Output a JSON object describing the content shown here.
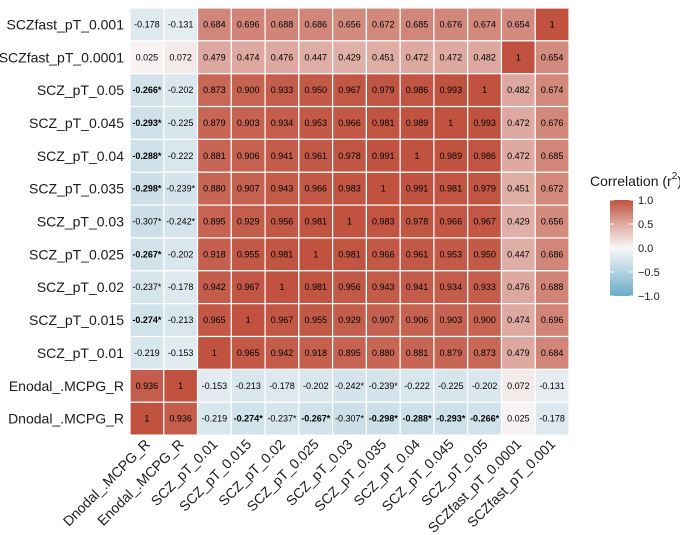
{
  "chart_data": {
    "type": "heatmap",
    "title": "",
    "legend_title": "Correlation (r²)",
    "legend_title_text": "Correlation (r",
    "legend_title_sup": "2",
    "legend_title_close": ")",
    "legend_ticks": [
      "1.0",
      "0.5",
      "0.0",
      "−0.5",
      "−1.0"
    ],
    "legend_tick_values": [
      1.0,
      0.5,
      0.0,
      -0.5,
      -1.0
    ],
    "color_scale": {
      "low": "#6aa9c8",
      "mid": "#f7f7f7",
      "high": "#c0523f",
      "limits": [
        -1,
        1
      ]
    },
    "row_labels": [
      "SCZfast_pT_0.001",
      "SCZfast_pT_0.0001",
      "SCZ_pT_0.05",
      "SCZ_pT_0.045",
      "SCZ_pT_0.04",
      "SCZ_pT_0.035",
      "SCZ_pT_0.03",
      "SCZ_pT_0.025",
      "SCZ_pT_0.02",
      "SCZ_pT_0.015",
      "SCZ_pT_0.01",
      "Enodal_.MCPG_R",
      "Dnodal_.MCPG_R"
    ],
    "col_labels": [
      "Dnodal_.MCPG_R",
      "Enodal_.MCPG_R",
      "SCZ_pT_0.01",
      "SCZ_pT_0.015",
      "SCZ_pT_0.02",
      "SCZ_pT_0.025",
      "SCZ_pT_0.03",
      "SCZ_pT_0.035",
      "SCZ_pT_0.04",
      "SCZ_pT_0.045",
      "SCZ_pT_0.05",
      "SCZfast_pT_0.0001",
      "SCZfast_pT_0.001"
    ],
    "values": [
      [
        -0.178,
        -0.131,
        0.684,
        0.696,
        0.688,
        0.686,
        0.656,
        0.672,
        0.685,
        0.676,
        0.674,
        0.654,
        1
      ],
      [
        0.025,
        0.072,
        0.479,
        0.474,
        0.476,
        0.447,
        0.429,
        0.451,
        0.472,
        0.472,
        0.482,
        1,
        0.654
      ],
      [
        -0.266,
        -0.202,
        0.873,
        0.9,
        0.933,
        0.95,
        0.967,
        0.979,
        0.986,
        0.993,
        1,
        0.482,
        0.674
      ],
      [
        -0.293,
        -0.225,
        0.879,
        0.903,
        0.934,
        0.953,
        0.966,
        0.981,
        0.989,
        1,
        0.993,
        0.472,
        0.676
      ],
      [
        -0.288,
        -0.222,
        0.881,
        0.906,
        0.941,
        0.961,
        0.978,
        0.991,
        1,
        0.989,
        0.986,
        0.472,
        0.685
      ],
      [
        -0.298,
        -0.239,
        0.88,
        0.907,
        0.943,
        0.966,
        0.983,
        1,
        0.991,
        0.981,
        0.979,
        0.451,
        0.672
      ],
      [
        -0.307,
        -0.242,
        0.895,
        0.929,
        0.956,
        0.981,
        1,
        0.983,
        0.978,
        0.966,
        0.967,
        0.429,
        0.656
      ],
      [
        -0.267,
        -0.202,
        0.918,
        0.955,
        0.981,
        1,
        0.981,
        0.966,
        0.961,
        0.953,
        0.95,
        0.447,
        0.686
      ],
      [
        -0.237,
        -0.178,
        0.942,
        0.967,
        1,
        0.981,
        0.956,
        0.943,
        0.941,
        0.934,
        0.933,
        0.476,
        0.688
      ],
      [
        -0.274,
        -0.213,
        0.965,
        1,
        0.967,
        0.955,
        0.929,
        0.907,
        0.906,
        0.903,
        0.9,
        0.474,
        0.696
      ],
      [
        -0.219,
        -0.153,
        1,
        0.965,
        0.942,
        0.918,
        0.895,
        0.88,
        0.881,
        0.879,
        0.873,
        0.479,
        0.684
      ],
      [
        0.936,
        1,
        -0.153,
        -0.213,
        -0.178,
        -0.202,
        -0.242,
        -0.239,
        -0.222,
        -0.225,
        -0.202,
        0.072,
        -0.131
      ],
      [
        1,
        0.936,
        -0.219,
        -0.274,
        -0.237,
        -0.267,
        -0.307,
        -0.298,
        -0.288,
        -0.293,
        -0.266,
        0.025,
        -0.178
      ]
    ],
    "labels": [
      [
        "-0.178",
        "-0.131",
        "0.684",
        "0.696",
        "0.688",
        "0.686",
        "0.656",
        "0.672",
        "0.685",
        "0.676",
        "0.674",
        "0.654",
        "1"
      ],
      [
        "0.025",
        "0.072",
        "0.479",
        "0.474",
        "0.476",
        "0.447",
        "0.429",
        "0.451",
        "0.472",
        "0.472",
        "0.482",
        "1",
        "0.654"
      ],
      [
        "-0.266*",
        "-0.202",
        "0.873",
        "0.900",
        "0.933",
        "0.950",
        "0.967",
        "0.979",
        "0.986",
        "0.993",
        "1",
        "0.482",
        "0.674"
      ],
      [
        "-0.293*",
        "-0.225",
        "0.879",
        "0.903",
        "0.934",
        "0.953",
        "0.966",
        "0.981",
        "0.989",
        "1",
        "0.993",
        "0.472",
        "0.676"
      ],
      [
        "-0.288*",
        "-0.222",
        "0.881",
        "0.906",
        "0.941",
        "0.961",
        "0.978",
        "0.991",
        "1",
        "0.989",
        "0.986",
        "0.472",
        "0.685"
      ],
      [
        "-0.298*",
        "-0.239*",
        "0.880",
        "0.907",
        "0.943",
        "0.966",
        "0.983",
        "1",
        "0.991",
        "0.981",
        "0.979",
        "0.451",
        "0.672"
      ],
      [
        "-0.307*",
        "-0.242*",
        "0.895",
        "0.929",
        "0.956",
        "0.981",
        "1",
        "0.983",
        "0.978",
        "0.966",
        "0.967",
        "0.429",
        "0.656"
      ],
      [
        "-0.267*",
        "-0.202",
        "0.918",
        "0.955",
        "0.981",
        "1",
        "0.981",
        "0.966",
        "0.961",
        "0.953",
        "0.950",
        "0.447",
        "0.686"
      ],
      [
        "-0.237*",
        "-0.178",
        "0.942",
        "0.967",
        "1",
        "0.981",
        "0.956",
        "0.943",
        "0.941",
        "0.934",
        "0.933",
        "0.476",
        "0.688"
      ],
      [
        "-0.274*",
        "-0.213",
        "0.965",
        "1",
        "0.967",
        "0.955",
        "0.929",
        "0.907",
        "0.906",
        "0.903",
        "0.900",
        "0.474",
        "0.696"
      ],
      [
        "-0.219",
        "-0.153",
        "1",
        "0.965",
        "0.942",
        "0.918",
        "0.895",
        "0.880",
        "0.881",
        "0.879",
        "0.873",
        "0.479",
        "0.684"
      ],
      [
        "0.936",
        "1",
        "-0.153",
        "-0.213",
        "-0.178",
        "-0.202",
        "-0.242*",
        "-0.239*",
        "-0.222",
        "-0.225",
        "-0.202",
        "0.072",
        "-0.131"
      ],
      [
        "1",
        "0.936",
        "-0.219",
        "-0.274*",
        "-0.237*",
        "-0.267*",
        "-0.307*",
        "-0.298*",
        "-0.288*",
        "-0.293*",
        "-0.266*",
        "0.025",
        "-0.178"
      ]
    ],
    "bold": [
      [
        false,
        false,
        false,
        false,
        false,
        false,
        false,
        false,
        false,
        false,
        false,
        false,
        false
      ],
      [
        false,
        false,
        false,
        false,
        false,
        false,
        false,
        false,
        false,
        false,
        false,
        false,
        false
      ],
      [
        true,
        false,
        false,
        false,
        false,
        false,
        false,
        false,
        false,
        false,
        false,
        false,
        false
      ],
      [
        true,
        false,
        false,
        false,
        false,
        false,
        false,
        false,
        false,
        false,
        false,
        false,
        false
      ],
      [
        true,
        false,
        false,
        false,
        false,
        false,
        false,
        false,
        false,
        false,
        false,
        false,
        false
      ],
      [
        true,
        false,
        false,
        false,
        false,
        false,
        false,
        false,
        false,
        false,
        false,
        false,
        false
      ],
      [
        false,
        false,
        false,
        false,
        false,
        false,
        false,
        false,
        false,
        false,
        false,
        false,
        false
      ],
      [
        true,
        false,
        false,
        false,
        false,
        false,
        false,
        false,
        false,
        false,
        false,
        false,
        false
      ],
      [
        false,
        false,
        false,
        false,
        false,
        false,
        false,
        false,
        false,
        false,
        false,
        false,
        false
      ],
      [
        true,
        false,
        false,
        false,
        false,
        false,
        false,
        false,
        false,
        false,
        false,
        false,
        false
      ],
      [
        false,
        false,
        false,
        false,
        false,
        false,
        false,
        false,
        false,
        false,
        false,
        false,
        false
      ],
      [
        false,
        false,
        false,
        false,
        false,
        false,
        false,
        false,
        false,
        false,
        false,
        false,
        false
      ],
      [
        false,
        false,
        false,
        true,
        false,
        true,
        false,
        true,
        true,
        true,
        true,
        false,
        false
      ]
    ]
  }
}
